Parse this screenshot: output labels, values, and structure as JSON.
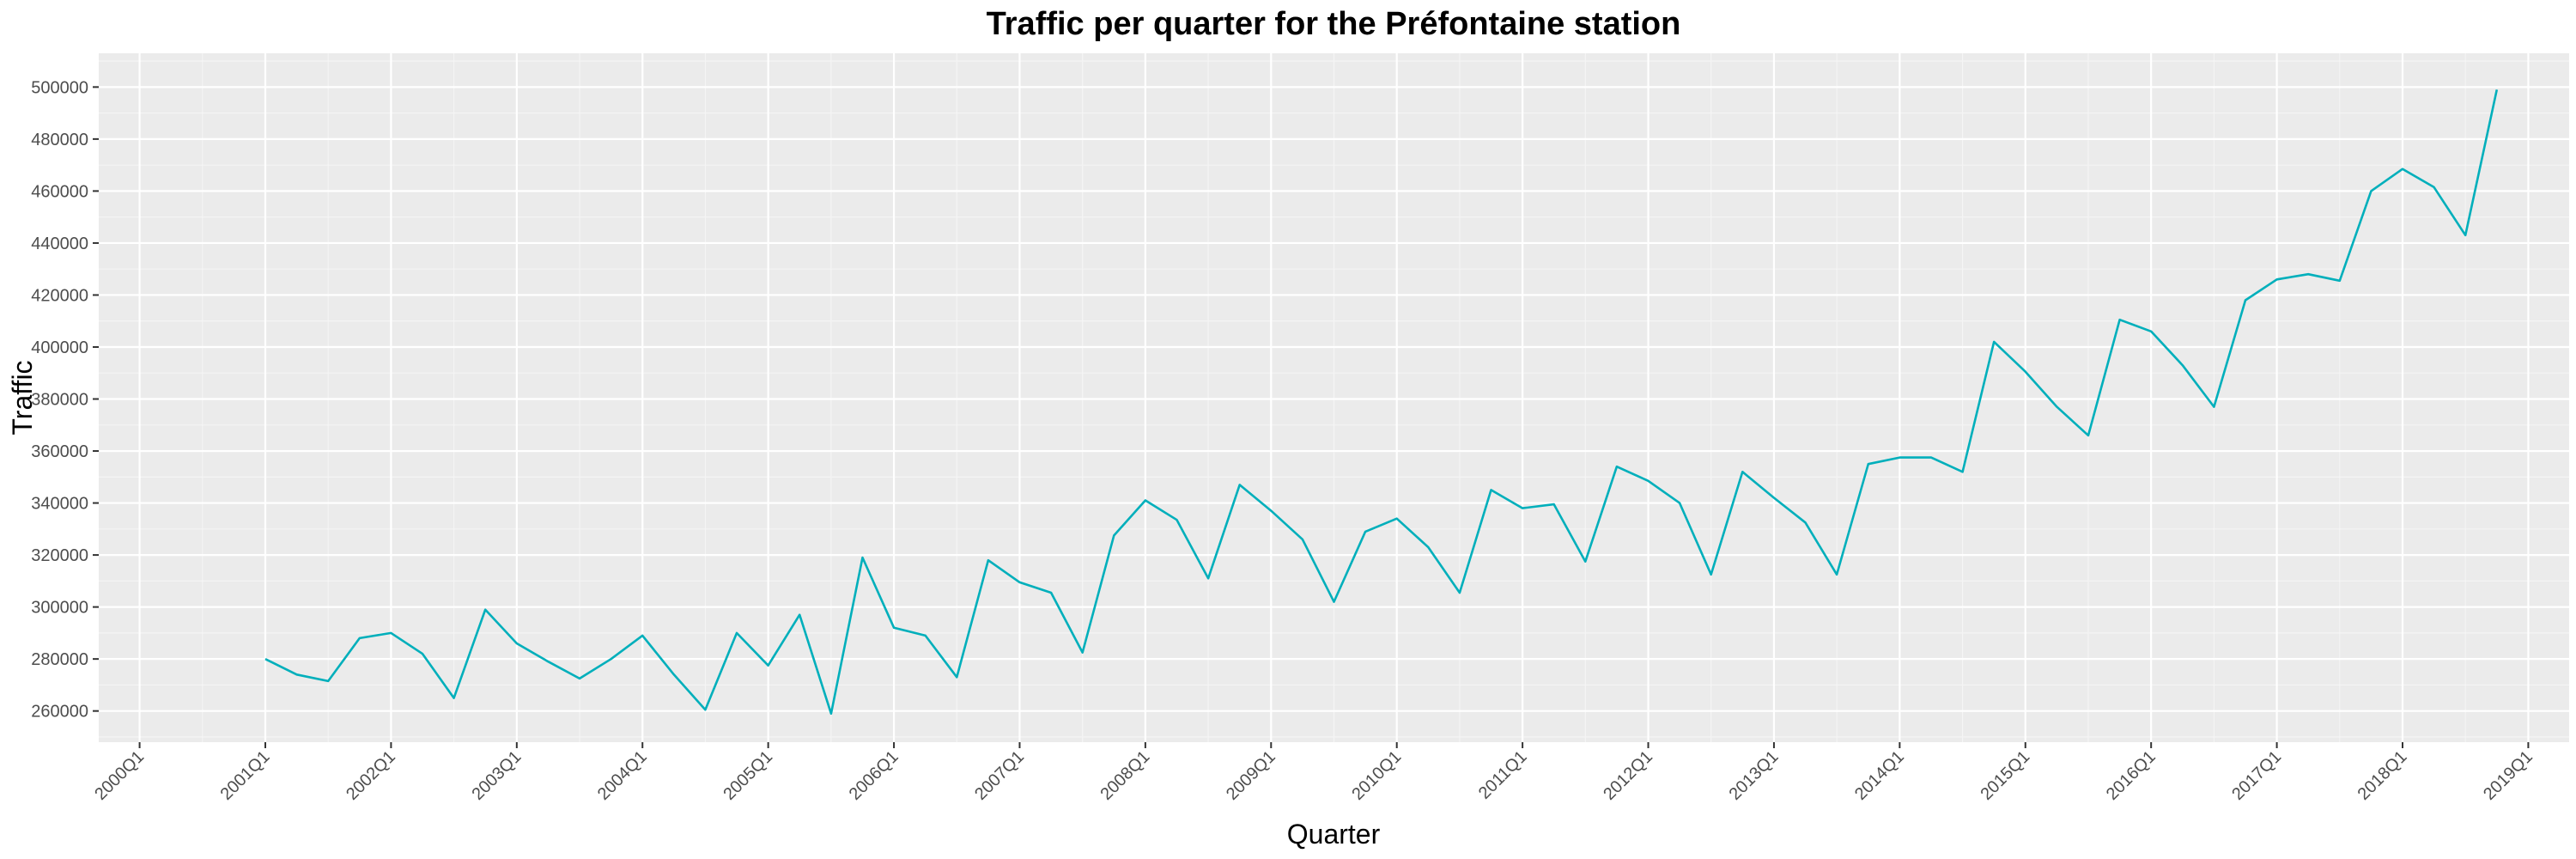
{
  "chart_data": {
    "type": "line",
    "title": "Traffic per quarter for the Préfontaine station",
    "xlabel": "Quarter",
    "ylabel": "Traffic",
    "x_ticks": [
      "2000Q1",
      "2001Q1",
      "2002Q1",
      "2003Q1",
      "2004Q1",
      "2005Q1",
      "2006Q1",
      "2007Q1",
      "2008Q1",
      "2009Q1",
      "2010Q1",
      "2011Q1",
      "2012Q1",
      "2013Q1",
      "2014Q1",
      "2015Q1",
      "2016Q1",
      "2017Q1",
      "2018Q1",
      "2019Q1"
    ],
    "xlim": [
      "2000Q1",
      "2019Q1"
    ],
    "y_ticks": [
      260000,
      280000,
      300000,
      320000,
      340000,
      360000,
      380000,
      400000,
      420000,
      440000,
      460000,
      480000,
      500000
    ],
    "ylim": [
      248000,
      513000
    ],
    "grid": true,
    "line_color": "#00AFBB",
    "series": [
      {
        "x": [
          "2001Q1",
          "2001Q2",
          "2001Q3",
          "2001Q4",
          "2002Q1",
          "2002Q2",
          "2002Q3",
          "2002Q4",
          "2003Q1",
          "2003Q2",
          "2003Q3",
          "2003Q4",
          "2004Q1",
          "2004Q2",
          "2004Q3",
          "2004Q4",
          "2005Q1",
          "2005Q2",
          "2005Q3",
          "2005Q4",
          "2006Q1",
          "2006Q2",
          "2006Q3",
          "2006Q4",
          "2007Q1",
          "2007Q2",
          "2007Q3",
          "2007Q4",
          "2008Q1",
          "2008Q2",
          "2008Q3",
          "2008Q4",
          "2009Q1",
          "2009Q2",
          "2009Q3",
          "2009Q4",
          "2010Q1",
          "2010Q2",
          "2010Q3",
          "2010Q4",
          "2011Q1",
          "2011Q2",
          "2011Q3",
          "2011Q4",
          "2012Q1",
          "2012Q2",
          "2012Q3",
          "2012Q4",
          "2013Q1",
          "2013Q2",
          "2013Q3",
          "2013Q4",
          "2014Q1",
          "2014Q2",
          "2014Q3",
          "2014Q4",
          "2015Q1",
          "2015Q2",
          "2015Q3",
          "2015Q4",
          "2016Q1",
          "2016Q2",
          "2016Q3",
          "2016Q4",
          "2017Q1",
          "2017Q2",
          "2017Q3",
          "2017Q4",
          "2018Q1",
          "2018Q2",
          "2018Q3",
          "2018Q4"
        ],
        "values": [
          280000,
          274000,
          271500,
          288000,
          290000,
          282000,
          265000,
          299000,
          286000,
          279000,
          272500,
          280000,
          289000,
          274000,
          260500,
          290000,
          277500,
          297000,
          259000,
          319000,
          292000,
          289000,
          273000,
          318000,
          309500,
          305500,
          282500,
          327500,
          341000,
          333500,
          311000,
          347000,
          337000,
          326000,
          302000,
          329000,
          334000,
          323000,
          305500,
          345000,
          338000,
          339500,
          317500,
          354000,
          348500,
          340000,
          312500,
          352000,
          342000,
          332500,
          312500,
          355000,
          357500,
          357500,
          352000,
          402000,
          390500,
          377000,
          366000,
          410500,
          406000,
          393000,
          377000,
          418000,
          426000,
          428000,
          425500,
          460000,
          468500,
          461500,
          443000,
          499000
        ]
      }
    ]
  }
}
